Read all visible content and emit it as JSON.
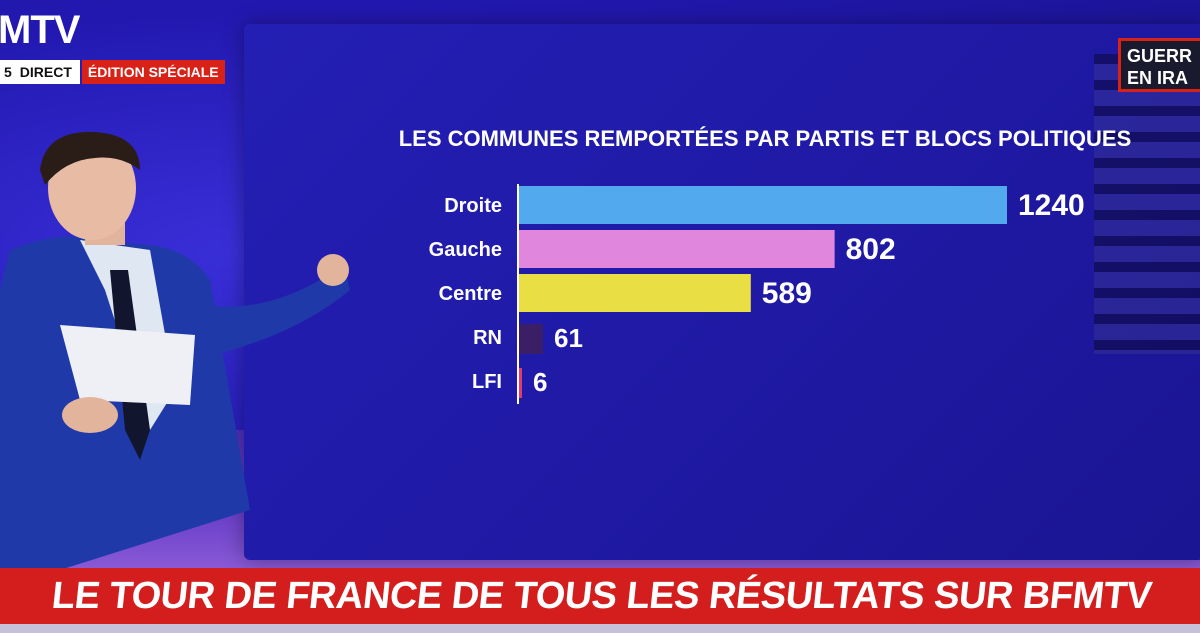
{
  "channel": {
    "logo_text": "MTV",
    "time_fragment": "5",
    "direct_label": "DIRECT",
    "edition_label": "ÉDITION SPÉCIALE",
    "corner_tag_line1": "GUERR",
    "corner_tag_line2": "EN IRA"
  },
  "ticker": {
    "text": "LE TOUR DE FRANCE DE TOUS LES RÉSULTATS SUR BFMTV"
  },
  "colors": {
    "droite": "#52a9ee",
    "gauche": "#e086dc",
    "centre": "#e9df45",
    "rn": "#3a1f66",
    "lfi": "#e23a6e",
    "ticker_red": "#d41e1e"
  },
  "chart_data": {
    "type": "bar",
    "orientation": "horizontal",
    "title": "LES COMMUNES REMPORTÉES PAR PARTIS ET BLOCS POLITIQUES",
    "categories": [
      "Droite",
      "Gauche",
      "Centre",
      "RN",
      "LFI"
    ],
    "values": [
      1240,
      802,
      589,
      61,
      6
    ],
    "value_labels": [
      "1240",
      "802",
      "589",
      "61",
      "6"
    ],
    "xlabel": "",
    "ylabel": "",
    "xlim": [
      0,
      1240
    ]
  }
}
